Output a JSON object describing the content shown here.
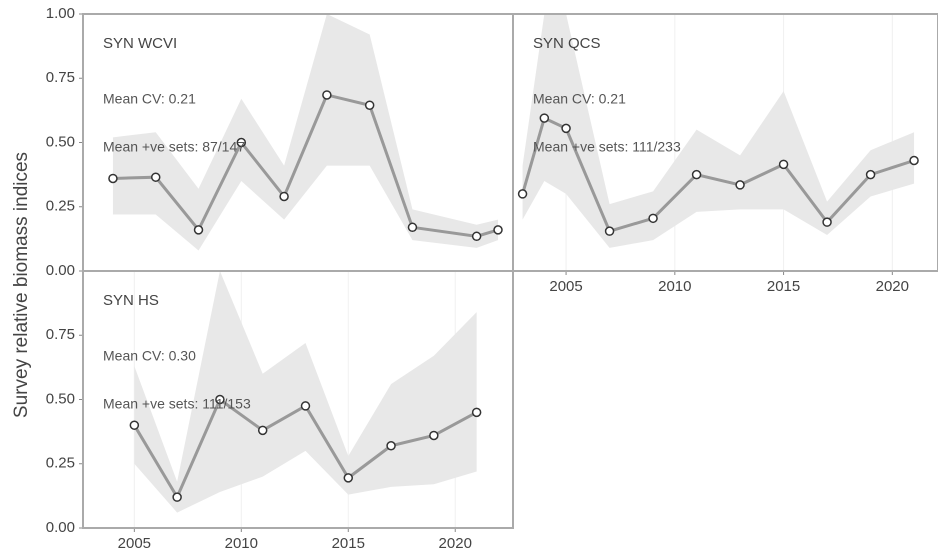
{
  "ylabel": "Survey relative biomass indices",
  "chart_data": [
    {
      "type": "line",
      "title": "SYN WCVI",
      "annotations": [
        "Mean CV: 0.21",
        "Mean +ve sets: 87/147"
      ],
      "x": [
        2004,
        2006,
        2008,
        2010,
        2012,
        2014,
        2016,
        2018,
        2021,
        2022
      ],
      "values": [
        0.36,
        0.365,
        0.16,
        0.5,
        0.29,
        0.685,
        0.645,
        0.17,
        0.135,
        0.16
      ],
      "lower": [
        0.22,
        0.22,
        0.08,
        0.35,
        0.2,
        0.41,
        0.41,
        0.12,
        0.09,
        0.12
      ],
      "upper": [
        0.52,
        0.54,
        0.32,
        0.67,
        0.41,
        1.0,
        0.92,
        0.24,
        0.18,
        0.2
      ],
      "color": "#999999",
      "band_color": "#e8e8e8",
      "xlim": [
        2002.6,
        2022.7
      ],
      "ylim": [
        0,
        1
      ],
      "yticks": [
        {
          "value": 0,
          "label": "0.00"
        },
        {
          "value": 0.25,
          "label": "0.25"
        },
        {
          "value": 0.5,
          "label": "0.50"
        },
        {
          "value": 0.75,
          "label": "0.75"
        },
        {
          "value": 1,
          "label": "1.00"
        }
      ]
    },
    {
      "type": "line",
      "title": "SYN QCS",
      "annotations": [
        "Mean CV: 0.21",
        "Mean +ve sets: 111/233"
      ],
      "x": [
        2003,
        2004,
        2005,
        2007,
        2009,
        2011,
        2013,
        2015,
        2017,
        2019,
        2021
      ],
      "values": [
        0.3,
        0.595,
        0.555,
        0.155,
        0.205,
        0.375,
        0.335,
        0.415,
        0.19,
        0.375,
        0.43
      ],
      "lower": [
        0.2,
        0.35,
        0.3,
        0.09,
        0.12,
        0.23,
        0.24,
        0.24,
        0.14,
        0.29,
        0.34
      ],
      "upper": [
        0.41,
        1.0,
        1.0,
        0.26,
        0.31,
        0.55,
        0.45,
        0.7,
        0.27,
        0.47,
        0.54
      ],
      "color": "#999999",
      "band_color": "#e8e8e8",
      "xlim": [
        2002.56,
        2022.1
      ],
      "ylim": [
        0,
        1
      ],
      "xticks": [
        2005,
        2010,
        2015,
        2020
      ]
    },
    {
      "type": "line",
      "title": "SYN HS",
      "annotations": [
        "Mean CV: 0.30",
        "Mean +ve sets: 111/153"
      ],
      "x": [
        2005,
        2007,
        2009,
        2011,
        2013,
        2015,
        2017,
        2019,
        2021
      ],
      "values": [
        0.4,
        0.12,
        0.5,
        0.38,
        0.475,
        0.195,
        0.32,
        0.36,
        0.45
      ],
      "lower": [
        0.25,
        0.06,
        0.14,
        0.2,
        0.3,
        0.13,
        0.16,
        0.17,
        0.22
      ],
      "upper": [
        0.63,
        0.18,
        1.0,
        0.6,
        0.72,
        0.28,
        0.56,
        0.67,
        0.84
      ],
      "color": "#999999",
      "band_color": "#e8e8e8",
      "xlim": [
        2002.6,
        2022.7
      ],
      "ylim": [
        0,
        1
      ],
      "yticks": [
        {
          "value": 0,
          "label": "0.00"
        },
        {
          "value": 0.25,
          "label": "0.25"
        },
        {
          "value": 0.5,
          "label": "0.50"
        },
        {
          "value": 0.75,
          "label": "0.75"
        }
      ],
      "xticks": [
        2005,
        2010,
        2015,
        2020
      ]
    }
  ]
}
